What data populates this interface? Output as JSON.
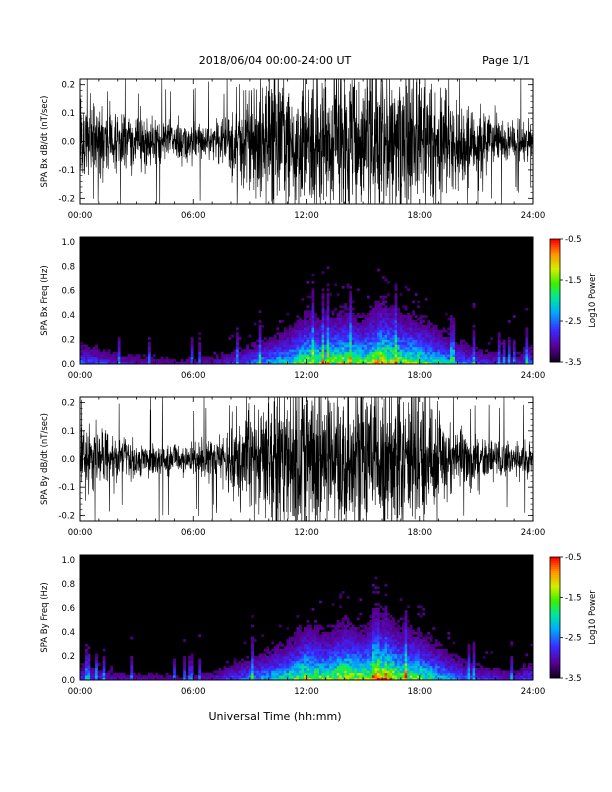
{
  "header": {
    "title": "2018/06/04  00:00-24:00 UT",
    "page": "Page 1/1"
  },
  "footer": {
    "xlabel": "Universal Time (hh:mm)"
  },
  "colorbar": {
    "label": "Log10 Power",
    "ticks": [
      "-0.5",
      "-1.5",
      "-2.5",
      "-3.5"
    ],
    "range": [
      -3.5,
      -0.5
    ]
  },
  "colors": {
    "background": "#ffffff",
    "trace": "#000000",
    "spectrogram_background": "#000000"
  },
  "chart_data": [
    {
      "type": "line",
      "ylabel": "SPA Bx dB/dt (nT/sec)",
      "xticks": [
        "00:00",
        "06:00",
        "12:00",
        "18:00",
        "24:00"
      ],
      "yticks": [
        "0.2",
        "0.1",
        "0.0",
        "-0.1",
        "-0.2"
      ],
      "xlim": [
        0,
        24
      ],
      "ylim": [
        -0.22,
        0.22
      ],
      "x_hours": [
        0,
        1,
        2,
        3,
        4,
        5,
        6,
        7,
        8,
        9,
        10,
        11,
        12,
        13,
        14,
        15,
        16,
        17,
        18,
        19,
        20,
        21,
        22,
        23,
        24
      ],
      "envelope_amplitude": [
        0.12,
        0.12,
        0.09,
        0.08,
        0.07,
        0.06,
        0.06,
        0.06,
        0.1,
        0.16,
        0.22,
        0.22,
        0.22,
        0.22,
        0.22,
        0.22,
        0.22,
        0.22,
        0.2,
        0.16,
        0.12,
        0.1,
        0.08,
        0.06,
        0.06
      ]
    },
    {
      "type": "heatmap",
      "ylabel": "SPA Bx Freq (Hz)",
      "xticks": [
        "00:00",
        "06:00",
        "12:00",
        "18:00",
        "24:00"
      ],
      "yticks": [
        "1.0",
        "0.8",
        "0.6",
        "0.4",
        "0.2",
        "0.0"
      ],
      "xlim": [
        0,
        24
      ],
      "ylim": [
        0,
        1.04
      ],
      "x_hours": [
        0,
        1,
        2,
        3,
        4,
        5,
        6,
        7,
        8,
        9,
        10,
        11,
        12,
        13,
        14,
        15,
        16,
        17,
        18,
        19,
        20,
        21,
        22,
        23,
        24
      ],
      "activity_level": [
        0.35,
        0.3,
        0.22,
        0.2,
        0.18,
        0.16,
        0.16,
        0.18,
        0.25,
        0.35,
        0.45,
        0.55,
        0.75,
        0.7,
        0.8,
        0.7,
        0.9,
        0.75,
        0.7,
        0.55,
        0.4,
        0.3,
        0.25,
        0.2,
        0.35
      ]
    },
    {
      "type": "line",
      "ylabel": "SPA By dB/dt (nT/sec)",
      "xticks": [
        "00:00",
        "06:00",
        "12:00",
        "18:00",
        "24:00"
      ],
      "yticks": [
        "0.2",
        "0.1",
        "0.0",
        "-0.1",
        "-0.2"
      ],
      "xlim": [
        0,
        24
      ],
      "ylim": [
        -0.22,
        0.22
      ],
      "x_hours": [
        0,
        1,
        2,
        3,
        4,
        5,
        6,
        7,
        8,
        9,
        10,
        11,
        12,
        13,
        14,
        15,
        16,
        17,
        18,
        19,
        20,
        21,
        22,
        23,
        24
      ],
      "envelope_amplitude": [
        0.1,
        0.1,
        0.08,
        0.06,
        0.05,
        0.05,
        0.05,
        0.07,
        0.09,
        0.14,
        0.2,
        0.22,
        0.22,
        0.22,
        0.22,
        0.22,
        0.22,
        0.22,
        0.2,
        0.14,
        0.1,
        0.08,
        0.06,
        0.05,
        0.05
      ]
    },
    {
      "type": "heatmap",
      "ylabel": "SPA By Freq (Hz)",
      "xticks": [
        "00:00",
        "06:00",
        "12:00",
        "18:00",
        "24:00"
      ],
      "yticks": [
        "1.0",
        "0.8",
        "0.6",
        "0.4",
        "0.2",
        "0.0"
      ],
      "xlim": [
        0,
        24
      ],
      "ylim": [
        0,
        1.04
      ],
      "x_hours": [
        0,
        1,
        2,
        3,
        4,
        5,
        6,
        7,
        8,
        9,
        10,
        11,
        12,
        13,
        14,
        15,
        16,
        17,
        18,
        19,
        20,
        21,
        22,
        23,
        24
      ],
      "activity_level": [
        0.3,
        0.25,
        0.2,
        0.18,
        0.16,
        0.15,
        0.16,
        0.2,
        0.3,
        0.4,
        0.5,
        0.6,
        0.8,
        0.72,
        0.85,
        0.75,
        0.95,
        0.78,
        0.72,
        0.55,
        0.4,
        0.3,
        0.25,
        0.2,
        0.35
      ]
    }
  ]
}
